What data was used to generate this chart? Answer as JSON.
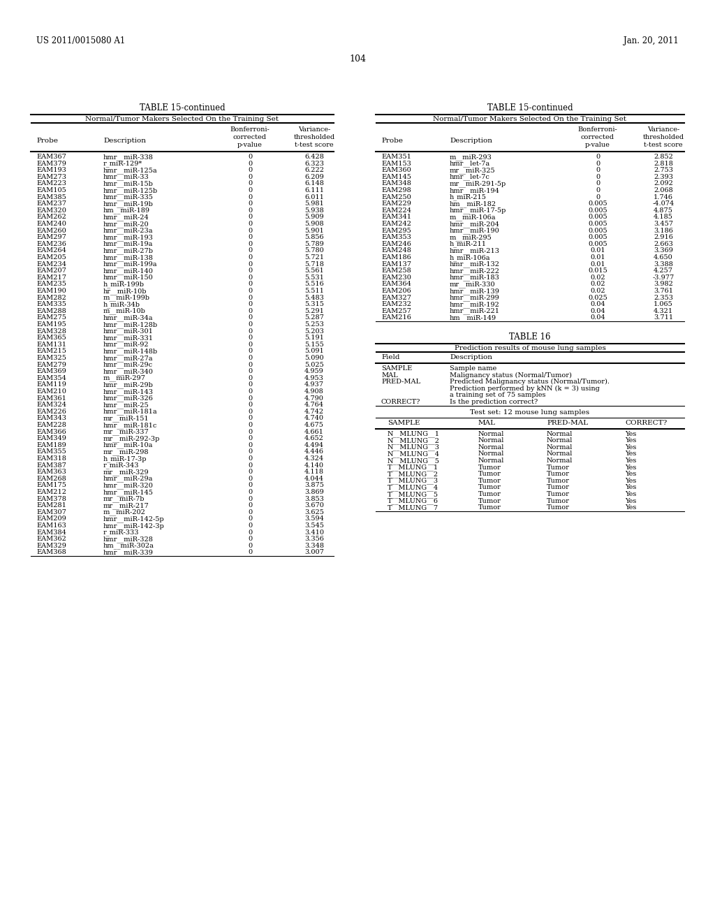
{
  "header_left": "US 2011/0015080 A1",
  "header_right": "Jan. 20, 2011",
  "page_number": "104",
  "table1_title": "TABLE 15-continued",
  "table1_subtitle": "Normal/Tumor Makers Selected On the Training Set",
  "table1_data": [
    [
      "EAM367",
      "hmr__miR-338",
      "0",
      "6.428"
    ],
    [
      "EAM379",
      "r_miR-129*",
      "0",
      "6.323"
    ],
    [
      "EAM193",
      "hmr__miR-125a",
      "0",
      "6.222"
    ],
    [
      "EAM273",
      "hmr__miR-33",
      "0",
      "6.209"
    ],
    [
      "EAM223",
      "hmr__miR-15b",
      "0",
      "6.148"
    ],
    [
      "EAM105",
      "hmr__miR-125b",
      "0",
      "6.111"
    ],
    [
      "EAM385",
      "hmr__miR-335",
      "0",
      "6.011"
    ],
    [
      "EAM237",
      "hmr__miR-19b",
      "0",
      "5.981"
    ],
    [
      "EAM320",
      "hm__miR-189",
      "0",
      "5.938"
    ],
    [
      "EAM262",
      "hmr__miR-24",
      "0",
      "5.909"
    ],
    [
      "EAM240",
      "hmr__miR-20",
      "0",
      "5.908"
    ],
    [
      "EAM260",
      "hmr__miR-23a",
      "0",
      "5.901"
    ],
    [
      "EAM297",
      "hmr__miR-193",
      "0",
      "5.856"
    ],
    [
      "EAM236",
      "hmr__miR-19a",
      "0",
      "5.789"
    ],
    [
      "EAM264",
      "hmr__miR-27b",
      "0",
      "5.780"
    ],
    [
      "EAM205",
      "hmr__miR-138",
      "0",
      "5.721"
    ],
    [
      "EAM234",
      "hmr__miR-199a",
      "0",
      "5.718"
    ],
    [
      "EAM207",
      "hmr__miR-140",
      "0",
      "5.561"
    ],
    [
      "EAM217",
      "hmr__miR-150",
      "0",
      "5.531"
    ],
    [
      "EAM235",
      "h_miR-199b",
      "0",
      "5.516"
    ],
    [
      "EAM190",
      "hr__miR-10b",
      "0",
      "5.511"
    ],
    [
      "EAM282",
      "m__miR-199b",
      "0",
      "5.483"
    ],
    [
      "EAM335",
      "h_miR-34b",
      "0",
      "5.315"
    ],
    [
      "EAM288",
      "m__miR-10b",
      "0",
      "5.291"
    ],
    [
      "EAM275",
      "hmr__miR-34a",
      "0",
      "5.287"
    ],
    [
      "EAM195",
      "hmr__miR-128b",
      "0",
      "5.253"
    ],
    [
      "EAM328",
      "hmr__miR-301",
      "0",
      "5.203"
    ],
    [
      "EAM365",
      "hmr__miR-331",
      "0",
      "5.191"
    ],
    [
      "EAM131",
      "hmr__miR-92",
      "0",
      "5.155"
    ],
    [
      "EAM215",
      "hmr__miR-148b",
      "0",
      "5.091"
    ],
    [
      "EAM325",
      "hmr__miR-27a",
      "0",
      "5.090"
    ],
    [
      "EAM279",
      "hmr__miR-29c",
      "0",
      "5.025"
    ],
    [
      "EAM369",
      "hmr__miR-340",
      "0",
      "4.959"
    ],
    [
      "EAM354",
      "m__miR-297",
      "0",
      "4.953"
    ],
    [
      "EAM119",
      "hmr__miR-29b",
      "0",
      "4.937"
    ],
    [
      "EAM210",
      "hmr__miR-143",
      "0",
      "4.908"
    ],
    [
      "EAM361",
      "hmr__miR-326",
      "0",
      "4.790"
    ],
    [
      "EAM324",
      "hmr__miR-25",
      "0",
      "4.764"
    ],
    [
      "EAM226",
      "hmr__miR-181a",
      "0",
      "4.742"
    ],
    [
      "EAM343",
      "mr__miR-151",
      "0",
      "4.740"
    ],
    [
      "EAM228",
      "hmr__miR-181c",
      "0",
      "4.675"
    ],
    [
      "EAM366",
      "mr__miR-337",
      "0",
      "4.661"
    ],
    [
      "EAM349",
      "mr__miR-292-3p",
      "0",
      "4.652"
    ],
    [
      "EAM189",
      "hmr__miR-10a",
      "0",
      "4.494"
    ],
    [
      "EAM355",
      "mr__miR-298",
      "0",
      "4.446"
    ],
    [
      "EAM318",
      "h_miR-17-3p",
      "0",
      "4.324"
    ],
    [
      "EAM387",
      "r_miR-343",
      "0",
      "4.140"
    ],
    [
      "EAM363",
      "mr__miR-329",
      "0",
      "4.118"
    ],
    [
      "EAM268",
      "hmr__miR-29a",
      "0",
      "4.044"
    ],
    [
      "EAM175",
      "hmr__miR-320",
      "0",
      "3.875"
    ],
    [
      "EAM212",
      "hmr__miR-145",
      "0",
      "3.869"
    ],
    [
      "EAM378",
      "mr__miR-7b",
      "0",
      "3.853"
    ],
    [
      "EAM281",
      "mr__miR-217",
      "0",
      "3.670"
    ],
    [
      "EAM307",
      "m__miR-202",
      "0",
      "3.625"
    ],
    [
      "EAM209",
      "hmr__miR-142-5p",
      "0",
      "3.594"
    ],
    [
      "EAM163",
      "hmr__miR-142-3p",
      "0",
      "3.545"
    ],
    [
      "EAM384",
      "r_miR-333",
      "0",
      "3.410"
    ],
    [
      "EAM362",
      "hmr__miR-328",
      "0",
      "3.356"
    ],
    [
      "EAM329",
      "hm__miR-302a",
      "0",
      "3.348"
    ],
    [
      "EAM368",
      "hmr__miR-339",
      "0",
      "3.007"
    ]
  ],
  "table2_title": "TABLE 15-continued",
  "table2_subtitle": "Normal/Tumor Makers Selected On the Training Set",
  "table2_data": [
    [
      "EAM351",
      "m__miR-293",
      "0",
      "2.852"
    ],
    [
      "EAM153",
      "hmr__let-7a",
      "0",
      "2.818"
    ],
    [
      "EAM360",
      "mr__miR-325",
      "0",
      "2.753"
    ],
    [
      "EAM145",
      "hmr__let-7c",
      "0",
      "2.393"
    ],
    [
      "EAM348",
      "mr__miR-291-5p",
      "0",
      "2.092"
    ],
    [
      "EAM298",
      "hmr__miR-194",
      "0",
      "2.068"
    ],
    [
      "EAM250",
      "h_miR-215",
      "0",
      "1.746"
    ],
    [
      "EAM229",
      "hm__miR-182",
      "0.005",
      "-4.074"
    ],
    [
      "EAM224",
      "hmr__miR-17-5p",
      "0.005",
      "4.875"
    ],
    [
      "EAM341",
      "m__miR-106a",
      "0.005",
      "4.185"
    ],
    [
      "EAM242",
      "hmr__miR-204",
      "0.005",
      "3.457"
    ],
    [
      "EAM295",
      "hmr__miR-190",
      "0.005",
      "3.186"
    ],
    [
      "EAM353",
      "m__miR-295",
      "0.005",
      "2.916"
    ],
    [
      "EAM246",
      "h_miR-211",
      "0.005",
      "2.663"
    ],
    [
      "EAM248",
      "hmr__miR-213",
      "0.01",
      "3.369"
    ],
    [
      "EAM186",
      "h_miR-106a",
      "0.01",
      "4.650"
    ],
    [
      "EAM137",
      "hmr__miR-132",
      "0.01",
      "3.388"
    ],
    [
      "EAM258",
      "hmr__miR-222",
      "0.015",
      "4.257"
    ],
    [
      "EAM230",
      "hmr__miR-183",
      "0.02",
      "-3.977"
    ],
    [
      "EAM364",
      "mr__miR-330",
      "0.02",
      "3.982"
    ],
    [
      "EAM206",
      "hmr__miR-139",
      "0.02",
      "3.761"
    ],
    [
      "EAM327",
      "hmr__miR-299",
      "0.025",
      "2.353"
    ],
    [
      "EAM232",
      "hmr__miR-192",
      "0.04",
      "1.065"
    ],
    [
      "EAM257",
      "hmr__miR-221",
      "0.04",
      "4.321"
    ],
    [
      "EAM216",
      "hm__miR-149",
      "0.04",
      "3.711"
    ]
  ],
  "table3_title": "TABLE 16",
  "table3_subtitle": "Prediction results of mouse lung samples",
  "table3_field_col": "Field",
  "table3_desc_col": "Description",
  "table3_fields": [
    [
      "SAMPLE",
      "Sample name"
    ],
    [
      "MAL",
      "Malignancy status (Normal/Tumor)"
    ],
    [
      "PRED-MAL",
      "Predicted Malignancy status (Normal/Tumor)."
    ],
    [
      "",
      "Prediction performed by kNN (k = 3) using"
    ],
    [
      "",
      "a training set of 75 samples"
    ],
    [
      "CORRECT?",
      "Is the prediction correct?"
    ]
  ],
  "table3_subtitle2": "Test set: 12 mouse lung samples",
  "table3_col_headers2": [
    "SAMPLE",
    "MAL",
    "PRED-MAL",
    "CORRECT?"
  ],
  "table3_data": [
    [
      "N__MLUNG__1",
      "Normal",
      "Normal",
      "Yes"
    ],
    [
      "N__MLUNG__2",
      "Normal",
      "Normal",
      "Yes"
    ],
    [
      "N__MLUNG__3",
      "Normal",
      "Normal",
      "Yes"
    ],
    [
      "N__MLUNG__4",
      "Normal",
      "Normal",
      "Yes"
    ],
    [
      "N__MLUNG__5",
      "Normal",
      "Normal",
      "Yes"
    ],
    [
      "T__MLUNG__1",
      "Tumor",
      "Tumor",
      "Yes"
    ],
    [
      "T__MLUNG__2",
      "Tumor",
      "Tumor",
      "Yes"
    ],
    [
      "T__MLUNG__3",
      "Tumor",
      "Tumor",
      "Yes"
    ],
    [
      "T__MLUNG__4",
      "Tumor",
      "Tumor",
      "Yes"
    ],
    [
      "T__MLUNG__5",
      "Tumor",
      "Tumor",
      "Yes"
    ],
    [
      "T__MLUNG__6",
      "Tumor",
      "Tumor",
      "Yes"
    ],
    [
      "T__MLUNG__7",
      "Tumor",
      "Tumor",
      "Yes"
    ]
  ]
}
